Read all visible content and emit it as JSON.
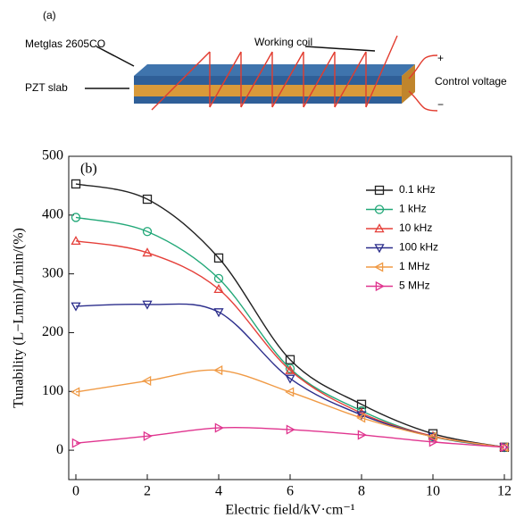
{
  "diagram": {
    "panel_label": "(a)",
    "layer_top": "Metglas 2605CO",
    "coil": "Working coil",
    "layer_mid": "PZT slab",
    "voltage": "Control voltage",
    "plus": "+",
    "minus": "−"
  },
  "chart_data": {
    "type": "line",
    "panel_label": "(b)",
    "x_label": "Electric field/kV·cm⁻¹",
    "y_label": "Tunability (L−Lmin)/Lmin/(%)",
    "x": [
      0,
      2,
      4,
      6,
      8,
      10,
      12
    ],
    "series": [
      {
        "name": "0.1 kHz",
        "color": "#222222",
        "marker": "square",
        "values": [
          453,
          427,
          327,
          154,
          78,
          28,
          5
        ]
      },
      {
        "name": "1 kHz",
        "color": "#22a878",
        "marker": "circle",
        "values": [
          396,
          372,
          292,
          139,
          67,
          23,
          5
        ]
      },
      {
        "name": "10 kHz",
        "color": "#e5403a",
        "marker": "triangle-up",
        "values": [
          356,
          336,
          274,
          136,
          63,
          24,
          5
        ]
      },
      {
        "name": "100 kHz",
        "color": "#2c2e8c",
        "marker": "triangle-down",
        "values": [
          245,
          248,
          235,
          122,
          60,
          23,
          5
        ]
      },
      {
        "name": "1 MHz",
        "color": "#f09a45",
        "marker": "triangle-left",
        "values": [
          99,
          118,
          136,
          99,
          55,
          23,
          5
        ]
      },
      {
        "name": "5 MHz",
        "color": "#e0358f",
        "marker": "triangle-right",
        "values": [
          12,
          24,
          38,
          35,
          26,
          14,
          5
        ]
      }
    ],
    "xlim": [
      -0.2,
      12.2
    ],
    "ylim": [
      -50,
      500
    ],
    "xticks": [
      0,
      2,
      4,
      6,
      8,
      10,
      12
    ],
    "yticks": [
      0,
      100,
      200,
      300,
      400,
      500
    ],
    "legend": "upper right",
    "smooth": true
  }
}
